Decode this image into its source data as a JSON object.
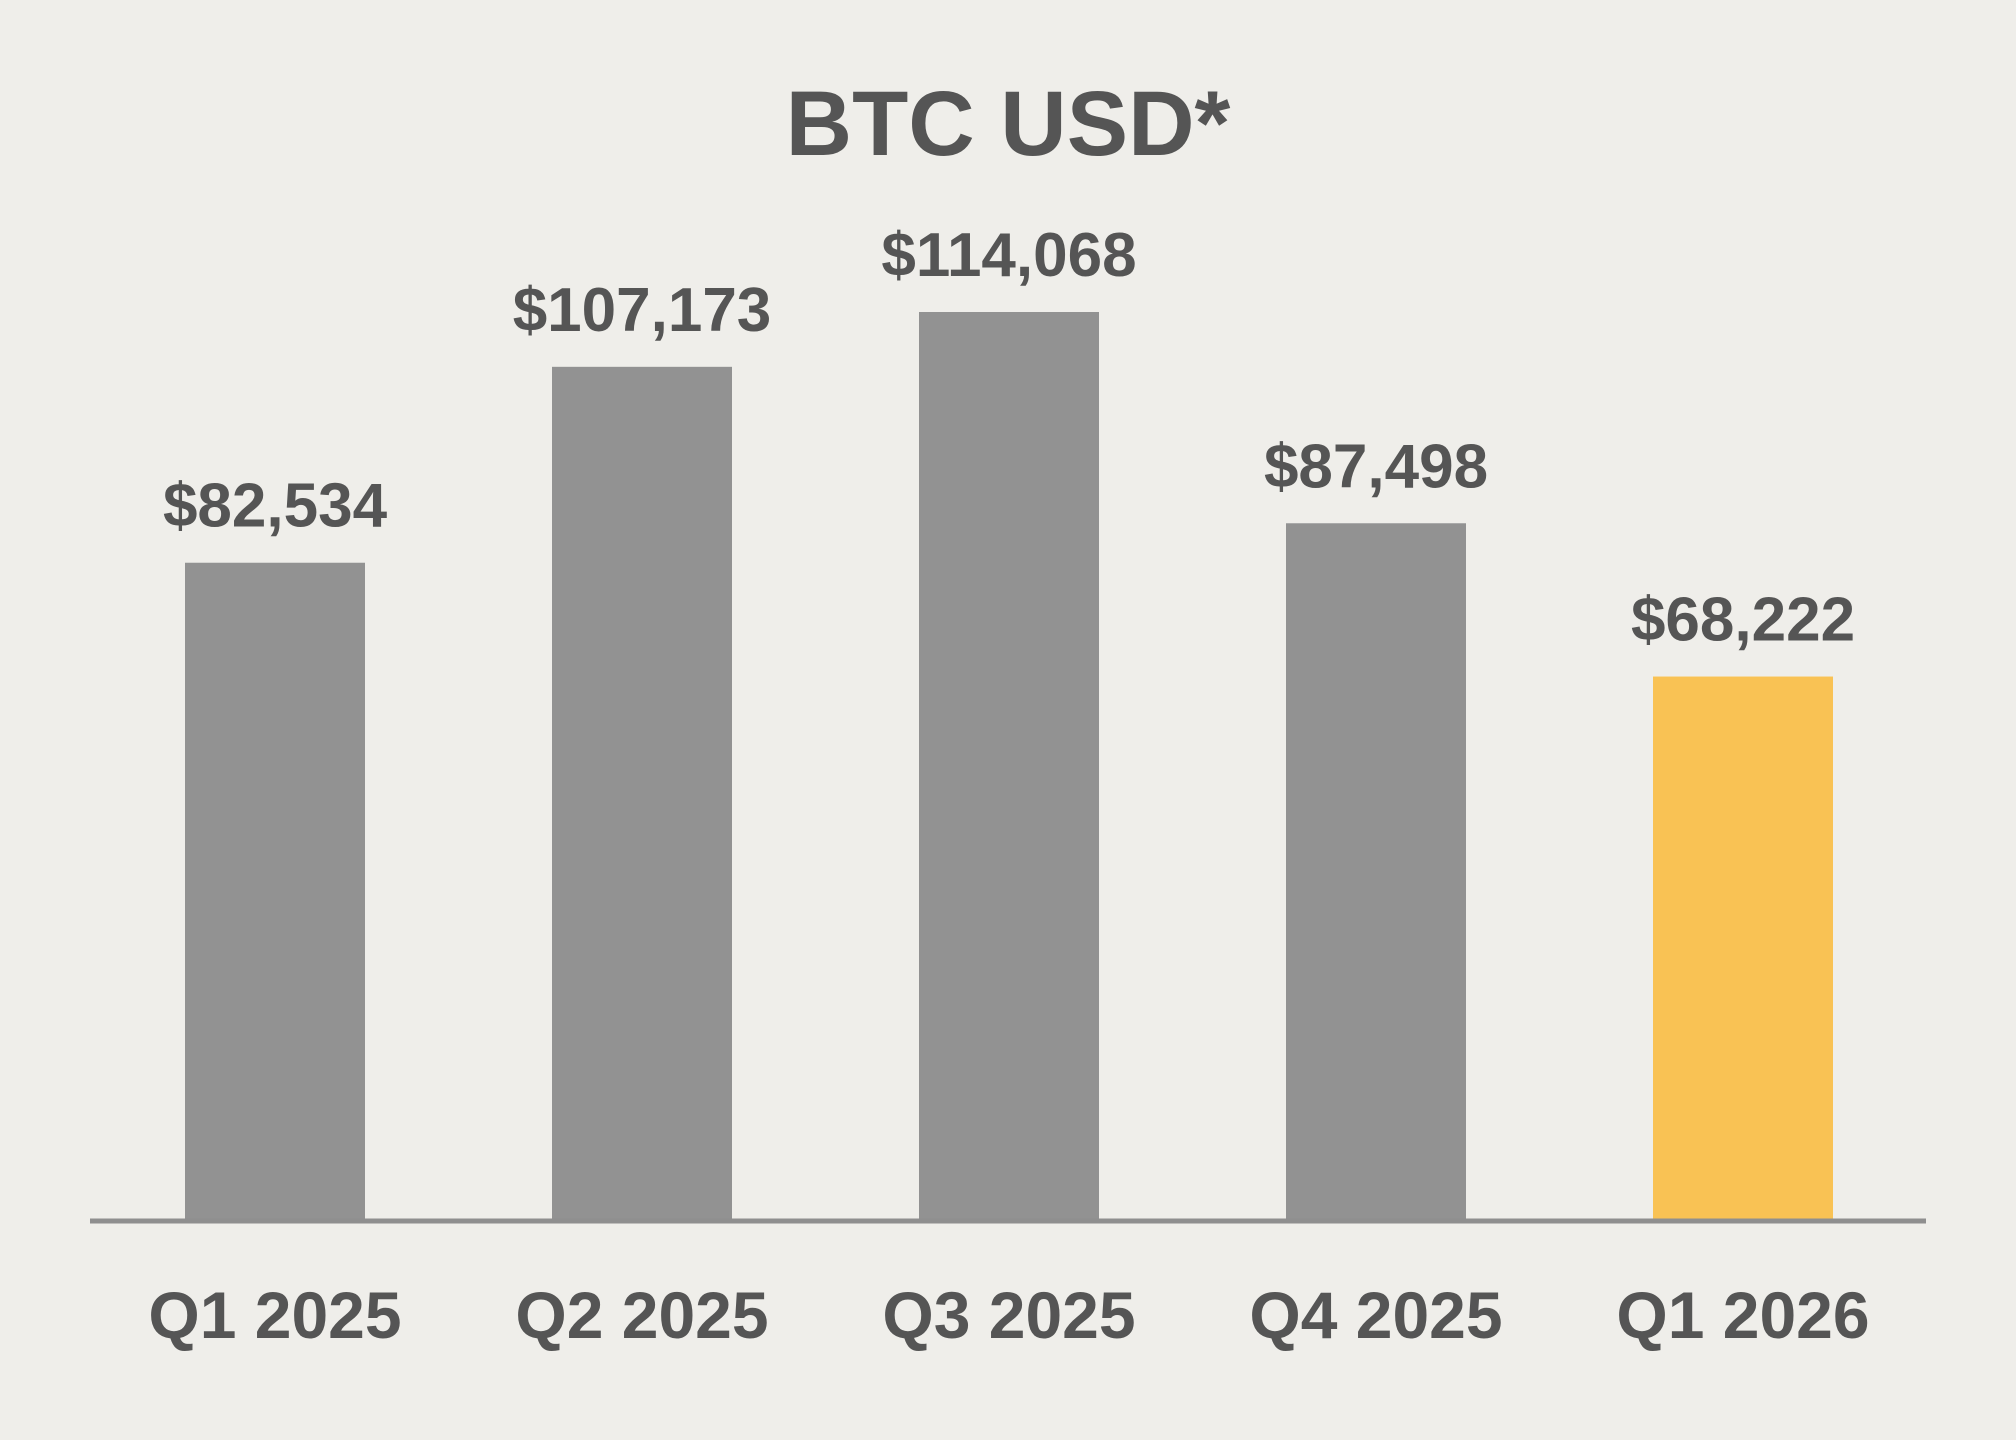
{
  "chart_data": {
    "type": "bar",
    "title": "BTC USD*",
    "xlabel": "",
    "ylabel": "",
    "categories": [
      "Q1 2025",
      "Q2 2025",
      "Q3 2025",
      "Q4 2025",
      "Q1 2026"
    ],
    "values": [
      82534,
      107173,
      114068,
      87498,
      68222
    ],
    "value_labels": [
      "$82,534",
      "$107,173",
      "$114,068",
      "$87,498",
      "$68,222"
    ],
    "ylim": [
      0,
      114068
    ],
    "grid": false,
    "legend": "none",
    "colors": {
      "background": "#efeeea",
      "bar_default": "#929292",
      "bar_highlight": "#f9c254",
      "text": "#555555",
      "axis": "#8f8f8f"
    },
    "highlight_index": 4
  }
}
